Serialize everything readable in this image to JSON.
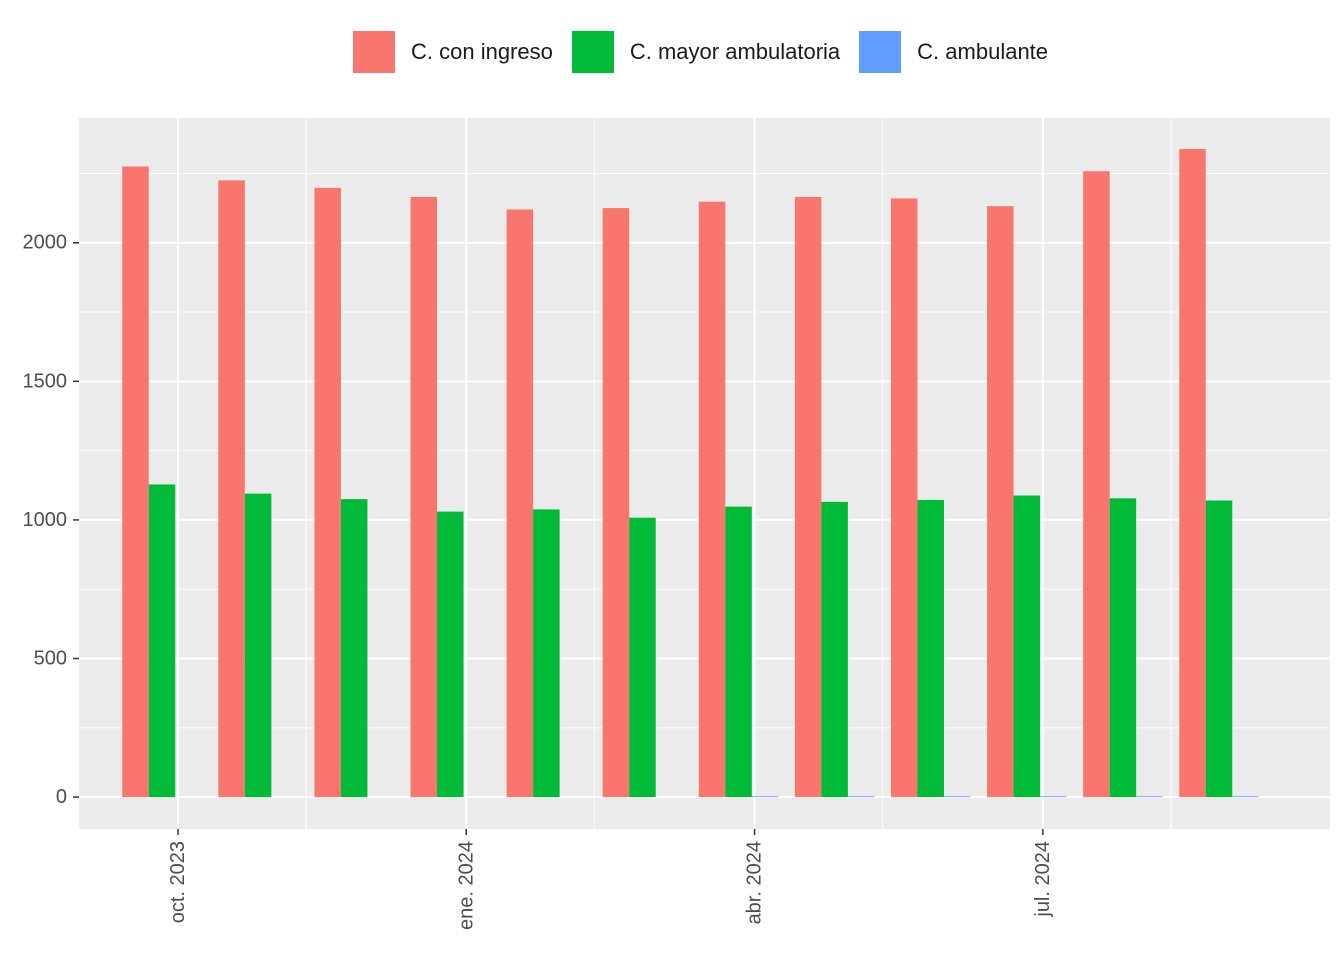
{
  "chart_data": {
    "type": "bar",
    "title": "",
    "xlabel": "",
    "ylabel": "",
    "x_ticks": [
      "oct. 2023",
      "ene. 2024",
      "abr. 2024",
      "jul. 2024"
    ],
    "y_ticks": [
      0,
      500,
      1000,
      1500,
      2000
    ],
    "ylim": [
      -115,
      2450
    ],
    "grid": true,
    "legend": "top",
    "categories": [
      "2023-10",
      "2023-11",
      "2023-12",
      "2024-01",
      "2024-02",
      "2024-03",
      "2024-04",
      "2024-05",
      "2024-06",
      "2024-07",
      "2024-08",
      "2024-09"
    ],
    "series": [
      {
        "name": "C. con ingreso",
        "color": "#F8766D",
        "values": [
          2275,
          2225,
          2198,
          2165,
          2120,
          2125,
          2148,
          2165,
          2160,
          2132,
          2258,
          2338
        ]
      },
      {
        "name": "C. mayor ambulatoria",
        "color": "#00BA38",
        "values": [
          1128,
          1095,
          1075,
          1030,
          1038,
          1008,
          1048,
          1065,
          1072,
          1088,
          1078,
          1070
        ]
      },
      {
        "name": "C. ambulante",
        "color": "#619CFF",
        "values": [
          0,
          0,
          0,
          0,
          0,
          0,
          3,
          3,
          3,
          3,
          3,
          3
        ]
      }
    ]
  }
}
